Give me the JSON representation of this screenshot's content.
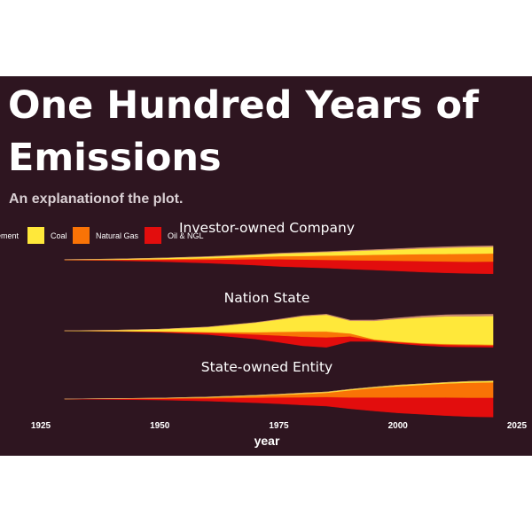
{
  "chart_data": {
    "type": "area",
    "title_lines": [
      "One Hundred  Years of",
      "Emissions"
    ],
    "subtitle": "An explanationof the plot.",
    "xlabel": "year",
    "xlim": [
      1925,
      2025
    ],
    "x_ticks": [
      1925,
      1950,
      1975,
      2000,
      2025
    ],
    "legend": {
      "placement": "top-left",
      "entries": [
        {
          "label": "ement",
          "color": "#c98a6e"
        },
        {
          "label": "Coal",
          "color": "#ffe83a"
        },
        {
          "label": "Natural Gas",
          "color": "#f97306"
        },
        {
          "label": "Oil & NGL",
          "color": "#e20d0d"
        }
      ]
    },
    "series_order": [
      "Oil & NGL",
      "Natural Gas",
      "Coal",
      "Cement"
    ],
    "colors": {
      "Cement": "#c98a6e",
      "Coal": "#ffe83a",
      "Natural Gas": "#f97306",
      "Oil & NGL": "#e20d0d"
    },
    "years": [
      1930,
      1940,
      1950,
      1960,
      1970,
      1975,
      1980,
      1985,
      1990,
      1995,
      2000,
      2005,
      2010,
      2015,
      2020
    ],
    "facets": [
      {
        "label": "Investor-owned Company",
        "series": [
          {
            "name": "Oil & NGL",
            "values": [
              0.1,
              0.3,
              0.8,
              1.5,
              2.6,
              3.2,
              3.4,
              3.6,
              3.9,
              4.2,
              4.5,
              4.8,
              5.0,
              5.2,
              5.4
            ]
          },
          {
            "name": "Natural Gas",
            "values": [
              0.0,
              0.1,
              0.3,
              0.6,
              1.0,
              1.3,
              1.6,
              1.9,
              2.2,
              2.5,
              2.8,
              3.1,
              3.3,
              3.5,
              3.6
            ]
          },
          {
            "name": "Coal",
            "values": [
              0.1,
              0.3,
              0.5,
              0.7,
              1.0,
              1.2,
              1.4,
              1.6,
              1.8,
              2.0,
              2.2,
              2.5,
              2.7,
              2.9,
              2.9
            ]
          },
          {
            "name": "Cement",
            "values": [
              0.0,
              0.0,
              0.0,
              0.1,
              0.1,
              0.2,
              0.2,
              0.2,
              0.3,
              0.3,
              0.4,
              0.4,
              0.5,
              0.5,
              0.5
            ]
          }
        ]
      },
      {
        "label": "Nation State",
        "series": [
          {
            "name": "Oil & NGL",
            "values": [
              0.0,
              0.1,
              0.3,
              0.8,
              2.0,
              3.0,
              4.0,
              4.4,
              2.2,
              0.6,
              0.6,
              0.7,
              0.8,
              0.8,
              0.8
            ]
          },
          {
            "name": "Natural Gas",
            "values": [
              0.0,
              0.0,
              0.1,
              0.3,
              1.0,
              1.6,
              2.3,
              2.6,
              1.3,
              0.3,
              0.3,
              0.3,
              0.4,
              0.4,
              0.4
            ]
          },
          {
            "name": "Coal",
            "values": [
              0.1,
              0.4,
              1.0,
              2.2,
              4.2,
              5.4,
              6.8,
              7.4,
              5.6,
              8.2,
              10.0,
              11.4,
              12.2,
              12.4,
              12.6
            ]
          },
          {
            "name": "Cement",
            "values": [
              0.0,
              0.0,
              0.0,
              0.1,
              0.1,
              0.2,
              0.2,
              0.3,
              0.3,
              0.4,
              0.5,
              0.6,
              0.7,
              0.8,
              0.8
            ]
          }
        ]
      },
      {
        "label": "State-owned Entity",
        "series": [
          {
            "name": "Oil & NGL",
            "values": [
              0.1,
              0.3,
              0.6,
              1.2,
              2.2,
              2.8,
              3.4,
              4.0,
              5.0,
              6.0,
              6.8,
              7.4,
              8.0,
              8.4,
              8.6
            ]
          },
          {
            "name": "Natural Gas",
            "values": [
              0.0,
              0.1,
              0.2,
              0.4,
              0.8,
              1.1,
              1.5,
              1.9,
              3.2,
              4.2,
              5.0,
              5.6,
              6.2,
              6.6,
              6.8
            ]
          },
          {
            "name": "Coal",
            "values": [
              0.0,
              0.0,
              0.1,
              0.2,
              0.3,
              0.3,
              0.4,
              0.4,
              0.4,
              0.4,
              0.5,
              0.5,
              0.5,
              0.6,
              0.6
            ]
          },
          {
            "name": "Cement",
            "values": [
              0.0,
              0.0,
              0.0,
              0.0,
              0.0,
              0.0,
              0.0,
              0.0,
              0.0,
              0.0,
              0.0,
              0.0,
              0.0,
              0.0,
              0.0
            ]
          }
        ]
      }
    ]
  }
}
